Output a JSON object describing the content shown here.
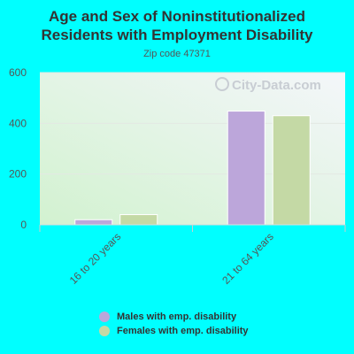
{
  "header": {
    "title_line1": "Age and Sex of Noninstitutionalized",
    "title_line2": "Residents with Employment Disability",
    "subtitle": "Zip code 47371"
  },
  "watermark": "City-Data.com",
  "colors": {
    "page_bg": "#00FFFF",
    "males": "#BCA6DA",
    "females": "#C4D9A5",
    "axis_text": "#555555"
  },
  "chart_data": {
    "type": "bar",
    "categories": [
      "16 to 20 years",
      "21 to 64 years"
    ],
    "series": [
      {
        "name": "Males with emp. disability",
        "values": [
          20,
          448
        ]
      },
      {
        "name": "Females with emp. disability",
        "values": [
          40,
          430
        ]
      }
    ],
    "yticks": [
      0,
      200,
      400,
      600
    ],
    "ylim": [
      0,
      600
    ],
    "legend_position": "bottom",
    "grid": true
  }
}
